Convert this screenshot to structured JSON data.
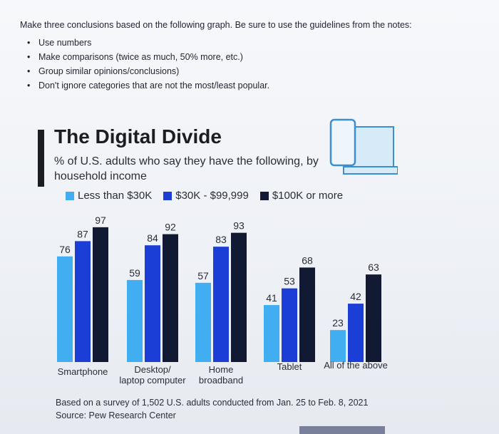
{
  "prompt": {
    "text": "Make three conclusions based on the following graph. Be sure to use the guidelines from the notes:",
    "bullets": [
      "Use numbers",
      "Make comparisons (twice as much, 50% more, etc.)",
      "Group similar opinions/conclusions)",
      "Don't ignore categories that are not the most/least popular."
    ]
  },
  "colors": {
    "low": "#40aef0",
    "mid": "#1b3fd6",
    "high": "#121a33"
  },
  "chart_data": {
    "type": "bar",
    "title": "The Digital Divide",
    "subtitle": "% of U.S. adults who say they have the following, by household income",
    "categories": [
      "Smartphone",
      "Desktop/ laptop computer",
      "Home broadband",
      "Tablet",
      "All of the above"
    ],
    "series": [
      {
        "name": "Less than $30K",
        "values": [
          76,
          59,
          57,
          41,
          23
        ]
      },
      {
        "name": "$30K - $99,999",
        "values": [
          87,
          84,
          83,
          53,
          42
        ]
      },
      {
        "name": "$100K or more",
        "values": [
          97,
          92,
          93,
          68,
          63
        ]
      }
    ],
    "ylim": [
      0,
      100
    ],
    "legend_position": "top",
    "grid": false,
    "note": "Based on a survey of 1,502 U.S. adults conducted from Jan. 25 to Feb. 8, 2021",
    "source": "Source: Pew Research Center"
  }
}
